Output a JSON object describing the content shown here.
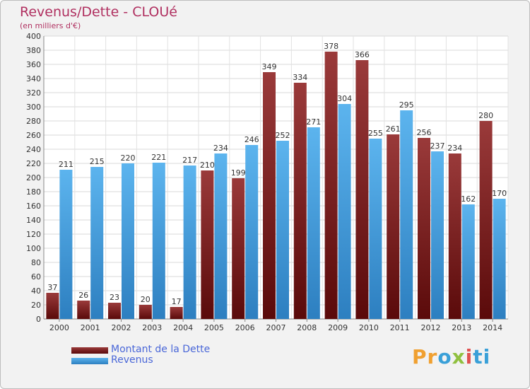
{
  "header": {
    "title": "Revenus/Dette - CLOUé",
    "subtitle": "(en milliers d'€)"
  },
  "chart_data": {
    "type": "bar",
    "categories": [
      "2000",
      "2001",
      "2002",
      "2003",
      "2004",
      "2005",
      "2006",
      "2007",
      "2008",
      "2009",
      "2010",
      "2011",
      "2012",
      "2013",
      "2014"
    ],
    "series": [
      {
        "name": "Montant de la Dette",
        "color": "#7a1e1e",
        "values": [
          37,
          26,
          23,
          20,
          17,
          210,
          199,
          349,
          334,
          378,
          366,
          261,
          256,
          234,
          280
        ]
      },
      {
        "name": "Revenus",
        "color": "#4aa3e0",
        "values": [
          211,
          215,
          220,
          221,
          217,
          234,
          246,
          252,
          271,
          304,
          255,
          295,
          237,
          162,
          170
        ]
      }
    ],
    "ylim": [
      0,
      400
    ],
    "ytick_step": 20,
    "grid": true,
    "legend_position": "bottom-left"
  },
  "legend": [
    {
      "label": "Montant de la Dette",
      "color": "#7a1e1e"
    },
    {
      "label": "Revenus",
      "color": "#4aa3e0"
    }
  ],
  "logo": {
    "text_parts": [
      "Pr",
      "o",
      "x",
      "i",
      "ti"
    ]
  }
}
